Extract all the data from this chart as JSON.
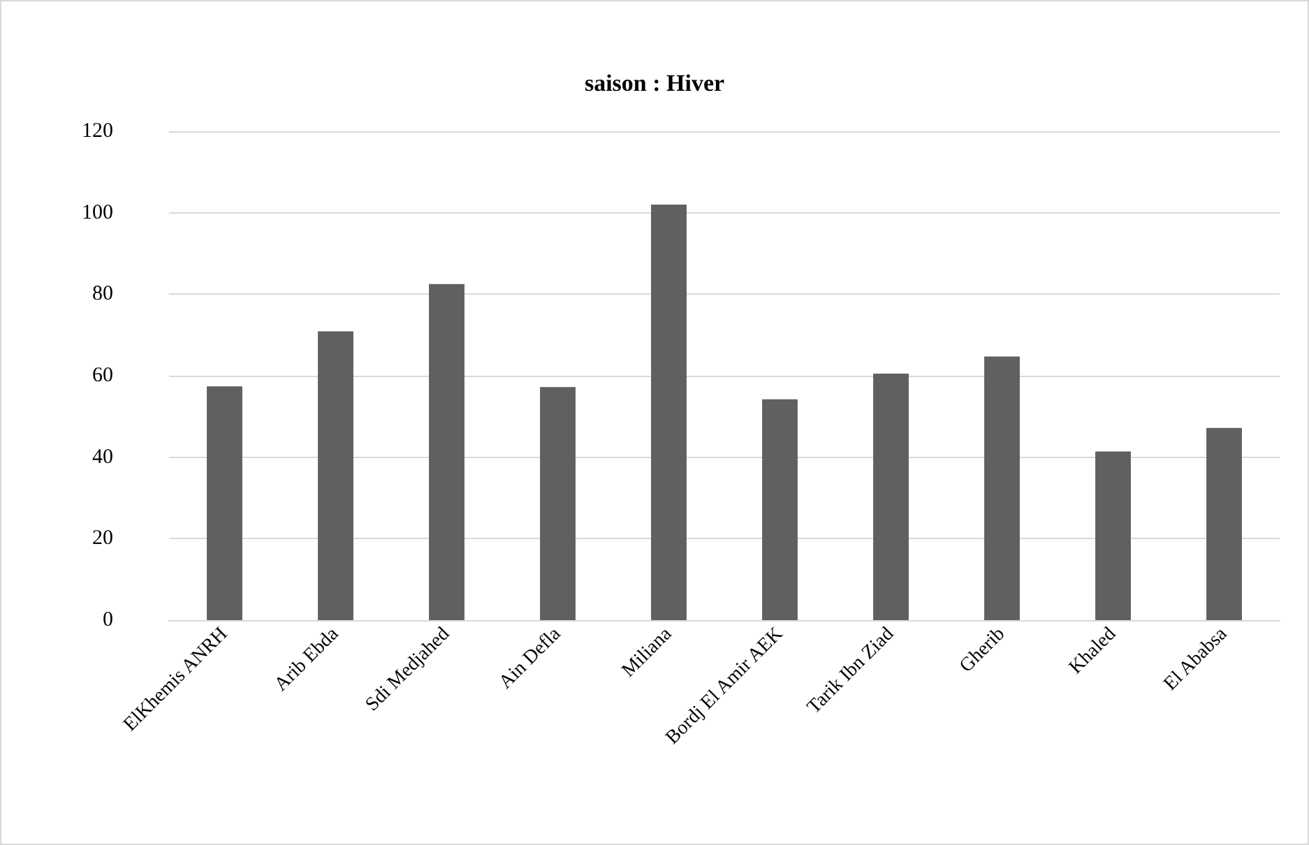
{
  "chart_data": {
    "type": "bar",
    "title": "saison : Hiver",
    "categories": [
      "ElKhemis ANRH",
      "Arib Ebda",
      "Sdi Medjahed",
      "Ain Defla",
      "Miliana",
      "Bordj El Amir AEK",
      "Tarik Ibn Ziad",
      "Gherib",
      "Khaled",
      "El Ababsa"
    ],
    "values": [
      57.4,
      70.9,
      82.5,
      57.2,
      102,
      54.2,
      60.5,
      64.7,
      41.4,
      47.2
    ],
    "color": "#606060",
    "ylim": [
      0,
      120
    ],
    "yticks": [
      0,
      20,
      40,
      60,
      80,
      100,
      120
    ],
    "grid": "y"
  }
}
